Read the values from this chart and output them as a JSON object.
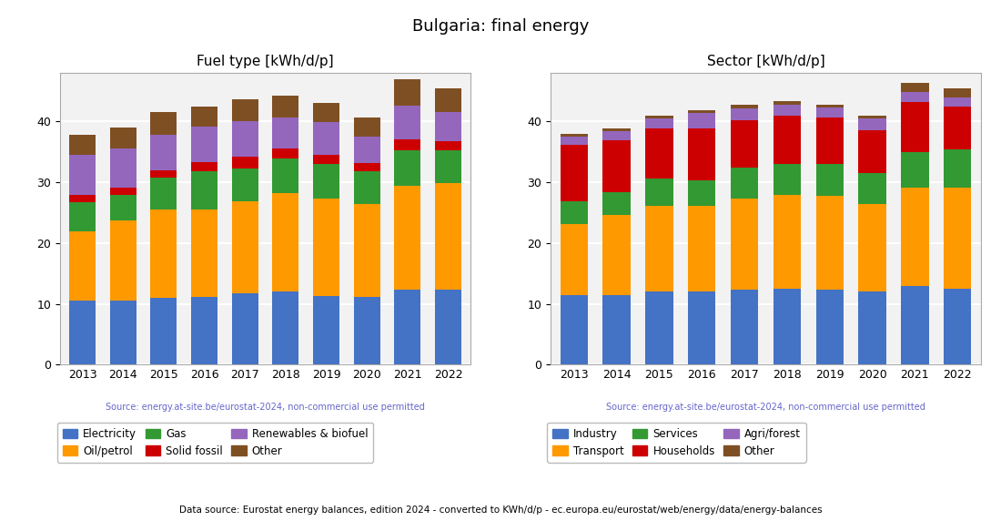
{
  "title": "Bulgaria: final energy",
  "years": [
    2013,
    2014,
    2015,
    2016,
    2017,
    2018,
    2019,
    2020,
    2021,
    2022
  ],
  "fuel_title": "Fuel type [kWh/d/p]",
  "fuel_categories": [
    "Electricity",
    "Oil/petrol",
    "Gas",
    "Solid fossil",
    "Renewables & biofuel",
    "Other"
  ],
  "fuel_colors": [
    "#4472c4",
    "#ff9900",
    "#339933",
    "#cc0000",
    "#9467bd",
    "#7f4f24"
  ],
  "fuel_data": {
    "Electricity": [
      10.5,
      10.5,
      11.0,
      11.2,
      11.7,
      12.0,
      11.3,
      11.1,
      12.4,
      12.4
    ],
    "Oil/petrol": [
      11.5,
      13.3,
      14.5,
      14.3,
      15.2,
      16.3,
      16.0,
      15.4,
      17.0,
      17.5
    ],
    "Gas": [
      4.7,
      4.2,
      5.3,
      6.4,
      5.4,
      5.7,
      5.7,
      5.3,
      5.9,
      5.3
    ],
    "Solid fossil": [
      1.3,
      1.2,
      1.2,
      1.4,
      2.0,
      1.6,
      1.5,
      1.4,
      1.8,
      1.5
    ],
    "Renewables & biofuel": [
      6.5,
      6.3,
      5.8,
      5.9,
      5.8,
      5.1,
      5.4,
      4.3,
      5.5,
      4.8
    ],
    "Other": [
      3.3,
      3.5,
      3.7,
      3.2,
      3.5,
      3.5,
      3.2,
      3.1,
      4.4,
      3.9
    ]
  },
  "sector_title": "Sector [kWh/d/p]",
  "sector_categories": [
    "Industry",
    "Transport",
    "Services",
    "Households",
    "Agri/forest",
    "Other"
  ],
  "sector_colors": [
    "#4472c4",
    "#ff9900",
    "#339933",
    "#cc0000",
    "#9467bd",
    "#7f4f24"
  ],
  "sector_data": {
    "Industry": [
      11.5,
      11.5,
      12.1,
      12.0,
      12.4,
      12.5,
      12.4,
      12.1,
      13.0,
      12.5
    ],
    "Transport": [
      11.7,
      13.2,
      14.0,
      14.2,
      15.0,
      15.4,
      15.4,
      14.3,
      16.2,
      16.6
    ],
    "Services": [
      3.7,
      3.7,
      4.5,
      4.2,
      5.0,
      5.1,
      5.2,
      5.2,
      5.8,
      6.3
    ],
    "Households": [
      9.2,
      8.5,
      8.3,
      8.5,
      7.8,
      8.0,
      7.7,
      7.0,
      8.2,
      7.1
    ],
    "Agri/forest": [
      1.4,
      1.5,
      1.6,
      2.5,
      2.0,
      1.8,
      1.6,
      1.9,
      1.7,
      1.5
    ],
    "Other": [
      0.4,
      0.5,
      0.5,
      0.5,
      0.6,
      0.5,
      0.4,
      0.5,
      1.4,
      1.5
    ]
  },
  "source_text": "Source: energy.at-site.be/eurostat-2024, non-commercial use permitted",
  "bottom_text": "Data source: Eurostat energy balances, edition 2024 - converted to KWh/d/p - ec.europa.eu/eurostat/web/energy/data/energy-balances",
  "source_color": "#6666cc",
  "ylim": [
    0,
    48
  ],
  "plot_bg": "#f2f2f2"
}
